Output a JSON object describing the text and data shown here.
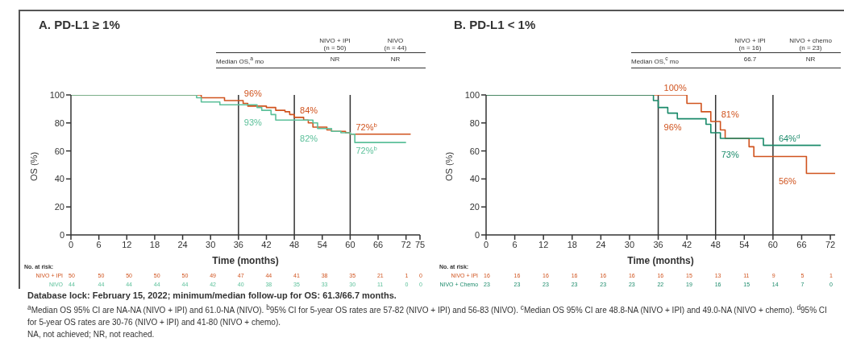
{
  "chart_data": [
    {
      "type": "step",
      "title": "A. PD-L1 ≥ 1%",
      "xlabel": "Time (months)",
      "ylabel": "OS (%)",
      "xlim": [
        0,
        75
      ],
      "xticks": [
        0,
        6,
        12,
        18,
        24,
        30,
        36,
        42,
        48,
        54,
        60,
        66,
        72,
        75
      ],
      "ylim": [
        0,
        100
      ],
      "yticks": [
        0,
        20,
        40,
        60,
        80,
        100
      ],
      "grid": false,
      "legend": false,
      "marker": "none",
      "line_style": "solid",
      "series": [
        {
          "color": "#d0531e",
          "x": [
            0,
            28,
            33,
            37,
            38,
            42,
            44,
            46,
            47,
            48,
            50,
            51,
            52,
            55,
            56,
            59,
            60,
            73
          ],
          "values": [
            100,
            98,
            96,
            94,
            92,
            91,
            89,
            88,
            86,
            84,
            82,
            80,
            77,
            75,
            74,
            73,
            72,
            72
          ]
        },
        {
          "color": "#5cc09a",
          "x": [
            0,
            27,
            28,
            32,
            40,
            41,
            43,
            44,
            52,
            53,
            56,
            58,
            60,
            61,
            72
          ],
          "values": [
            100,
            98,
            95,
            93,
            91,
            89,
            86,
            82,
            80,
            76,
            74,
            73,
            72,
            66,
            66
          ]
        }
      ],
      "ref_lines": [
        {
          "axis": "x",
          "value": 36,
          "color": "#333333"
        },
        {
          "axis": "x",
          "value": 48,
          "color": "#333333"
        },
        {
          "axis": "x",
          "value": 60,
          "color": "#333333"
        }
      ],
      "annotations": [
        "NIVO + IPI\n(n = 50)",
        "NIVO\n(n = 44)",
        "Median OS,$^{a}$ mo",
        "NR",
        "NR",
        "No. at risk:",
        "NIVO + IPI 50 50 50 50 50 49 47 44 41 38 35 21 1 0",
        "NIVO 44 44 44 44 44 42 40 38 35 33 30 11 0 0",
        {
          "text": "96%",
          "x": 36,
          "y": 96
        },
        {
          "text": "93%",
          "x": 36,
          "y": 93
        },
        {
          "text": "84%",
          "x": 48,
          "y": 84
        },
        {
          "text": "82%",
          "x": 48,
          "y": 82
        },
        {
          "text": "72%$^{b}$",
          "x": 60,
          "y": 72
        },
        {
          "text": "72%$^{b}$",
          "x": 60,
          "y": 72
        }
      ]
    },
    {
      "type": "step",
      "title": "B. PD-L1 < 1%",
      "xlabel": "Time (months)",
      "ylabel": "OS (%)",
      "xlim": [
        0,
        73
      ],
      "xticks": [
        0,
        6,
        12,
        18,
        24,
        30,
        36,
        42,
        48,
        54,
        60,
        66,
        72
      ],
      "ylim": [
        0,
        100
      ],
      "yticks": [
        0,
        20,
        40,
        60,
        80,
        100
      ],
      "grid": false,
      "legend": false,
      "marker": "none",
      "line_style": "solid",
      "series": [
        {
          "color": "#d0531e",
          "x": [
            0,
            42,
            45,
            47,
            49,
            50,
            55,
            56,
            67,
            73
          ],
          "values": [
            100,
            94,
            88,
            81,
            75,
            69,
            63,
            56,
            44,
            44
          ]
        },
        {
          "color": "#1a8a6a",
          "x": [
            0,
            35,
            36,
            38,
            40,
            46,
            47,
            49,
            58,
            70
          ],
          "values": [
            100,
            96,
            91,
            87,
            83,
            79,
            73,
            69,
            64,
            64
          ]
        }
      ],
      "ref_lines": [
        {
          "axis": "x",
          "value": 36,
          "color": "#333333"
        },
        {
          "axis": "x",
          "value": 48,
          "color": "#333333"
        },
        {
          "axis": "x",
          "value": 60,
          "color": "#333333"
        }
      ],
      "annotations": [
        "NIVO + IPI\n(n = 16)",
        "NIVO + chemo\n(n = 23)",
        "Median OS,$^{c}$ mo",
        "66.7",
        "NR",
        "No. at risk:",
        "NIVO + IPI 16 16 16 16 16 16 16 15 13 11 9 5 1",
        "NIVO + Chemo 23 23 23 23 23 23 22 19 16 15 14 7 0",
        {
          "text": "100%",
          "x": 36,
          "y": 100
        },
        {
          "text": "96%",
          "x": 36,
          "y": 96
        },
        {
          "text": "81%",
          "x": 48,
          "y": 81
        },
        {
          "text": "73%",
          "x": 48,
          "y": 73
        },
        {
          "text": "64%$^{d}$",
          "x": 60,
          "y": 64
        },
        {
          "text": "56%",
          "x": 60,
          "y": 56
        },
        "Database lock: February 15, 2022; minimum/median follow-up for OS: 61.3/66.7 months.",
        "$^{a}$Median OS 95% CI are NA-NA (NIVO + IPI) and 61.0-NA (NIVO). $^{b}$95% CI for 5-year OS rates are 57-82 (NIVO + IPI) and 56-83 (NIVO). $^{c}$Median OS 95% CI are 48.8-NA (NIVO + IPI) and 49.0-NA (NIVO + chemo). $^{d}$95% CI for 5-year OS rates are 30-76 (NIVO + IPI) and 41-80 (NIVO + chemo).",
        "NA, not achieved; NR, not reached."
      ]
    }
  ]
}
